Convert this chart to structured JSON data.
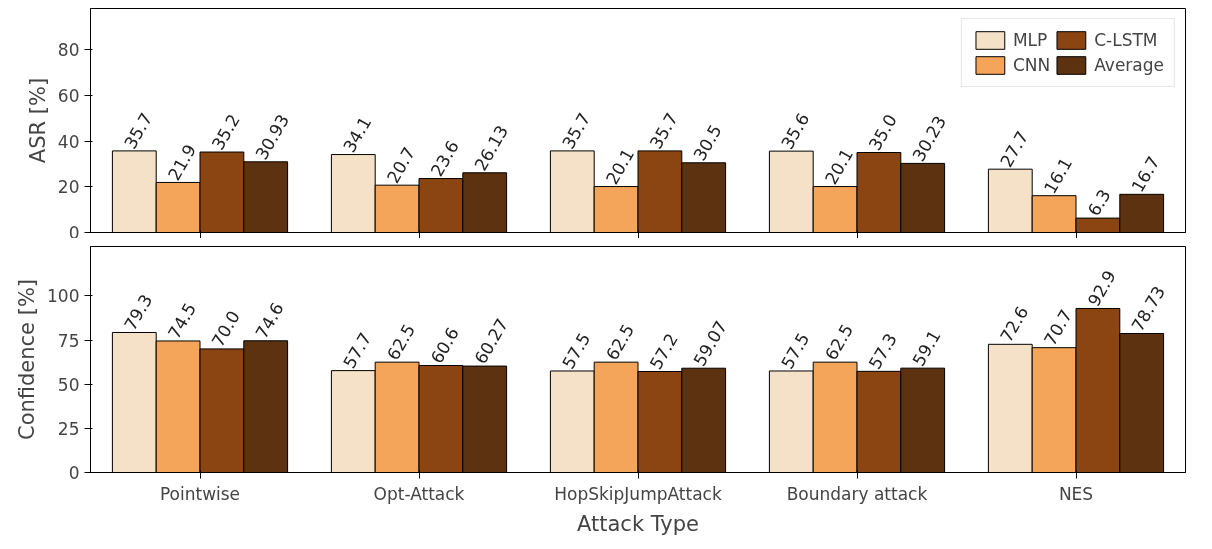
{
  "chart_data": [
    {
      "type": "bar",
      "ylabel": "ASR [%]",
      "categories": [
        null,
        null,
        null,
        null,
        null
      ],
      "ylim": [
        0,
        98
      ],
      "yticks": [
        0,
        20,
        40,
        60,
        80
      ],
      "legend": "top right",
      "grid": false,
      "series": [
        {
          "name": "MLP",
          "color": "#f5e1c8",
          "values": [
            35.7,
            34.1,
            35.7,
            35.6,
            27.7
          ],
          "value_labels": [
            "35.7",
            "34.1",
            "35.7",
            "35.6",
            "27.7"
          ]
        },
        {
          "name": "CNN",
          "color": "#f5a55a",
          "values": [
            21.9,
            20.7,
            20.1,
            20.1,
            16.1
          ],
          "value_labels": [
            "21.9",
            "20.7",
            "20.1",
            "20.1",
            "16.1"
          ]
        },
        {
          "name": "C-LSTM",
          "color": "#8b4513",
          "values": [
            35.2,
            23.6,
            35.7,
            35.0,
            6.3
          ],
          "value_labels": [
            "35.2",
            "23.6",
            "35.7",
            "35.0",
            "6.3"
          ]
        },
        {
          "name": "Average",
          "color": "#5c3210",
          "values": [
            30.93,
            26.13,
            30.5,
            30.23,
            16.7
          ],
          "value_labels": [
            "30.93",
            "26.13",
            "30.5",
            "30.23",
            "16.7"
          ]
        }
      ]
    },
    {
      "type": "bar",
      "ylabel": "Confidence [%]",
      "xlabel": "Attack Type",
      "categories": [
        "Pointwise",
        "Opt-Attack",
        "HopSkipJumpAttack",
        "Boundary attack",
        "NES"
      ],
      "ylim": [
        0,
        128
      ],
      "yticks": [
        0,
        25,
        50,
        75,
        100
      ],
      "grid": false,
      "series": [
        {
          "color": "#f5e1c8",
          "values": [
            79.3,
            57.7,
            57.5,
            57.5,
            72.6
          ],
          "value_labels": [
            "79.3",
            "57.7",
            "57.5",
            "57.5",
            "72.6"
          ]
        },
        {
          "color": "#f5a55a",
          "values": [
            74.5,
            62.5,
            62.5,
            62.5,
            70.7
          ],
          "value_labels": [
            "74.5",
            "62.5",
            "62.5",
            "62.5",
            "70.7"
          ]
        },
        {
          "color": "#8b4513",
          "values": [
            70.0,
            60.6,
            57.2,
            57.3,
            92.9
          ],
          "value_labels": [
            "70.0",
            "60.6",
            "57.2",
            "57.3",
            "92.9"
          ]
        },
        {
          "color": "#5c3210",
          "values": [
            74.6,
            60.27,
            59.07,
            59.1,
            78.73
          ],
          "value_labels": [
            "74.6",
            "60.27",
            "59.07",
            "59.1",
            "78.73"
          ]
        }
      ]
    }
  ]
}
